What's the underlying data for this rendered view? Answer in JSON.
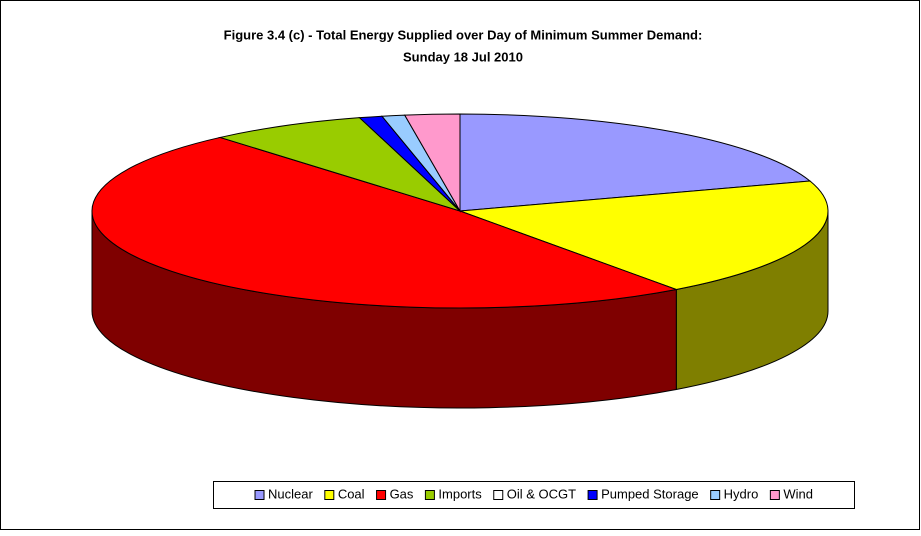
{
  "chart_data": {
    "type": "pie3d",
    "title": "Figure 3.4 (c) - Total Energy Supplied over Day of Minimum Summer Demand:",
    "subtitle": "Sunday 18 Jul 2010",
    "categories": [
      "Nuclear",
      "Coal",
      "Gas",
      "Imports",
      "Oil & OCGT",
      "Pumped Storage",
      "Hydro",
      "Wind"
    ],
    "values": [
      20,
      20,
      48.7,
      6.9,
      0,
      1,
      1,
      2.4
    ],
    "colors": [
      "#9999ff",
      "#ffff00",
      "#ff0000",
      "#99cc00",
      "#ffffff",
      "#0000ff",
      "#99ccff",
      "#ff99cc"
    ],
    "legend": "bottom"
  }
}
